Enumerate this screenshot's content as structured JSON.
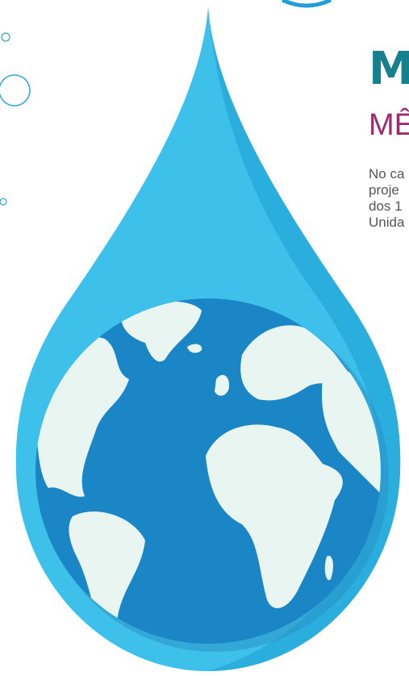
{
  "heading": "M",
  "subheading": "MÊ",
  "paragraph": [
    "No ca",
    "proje",
    "dos 1",
    "Unida"
  ]
}
